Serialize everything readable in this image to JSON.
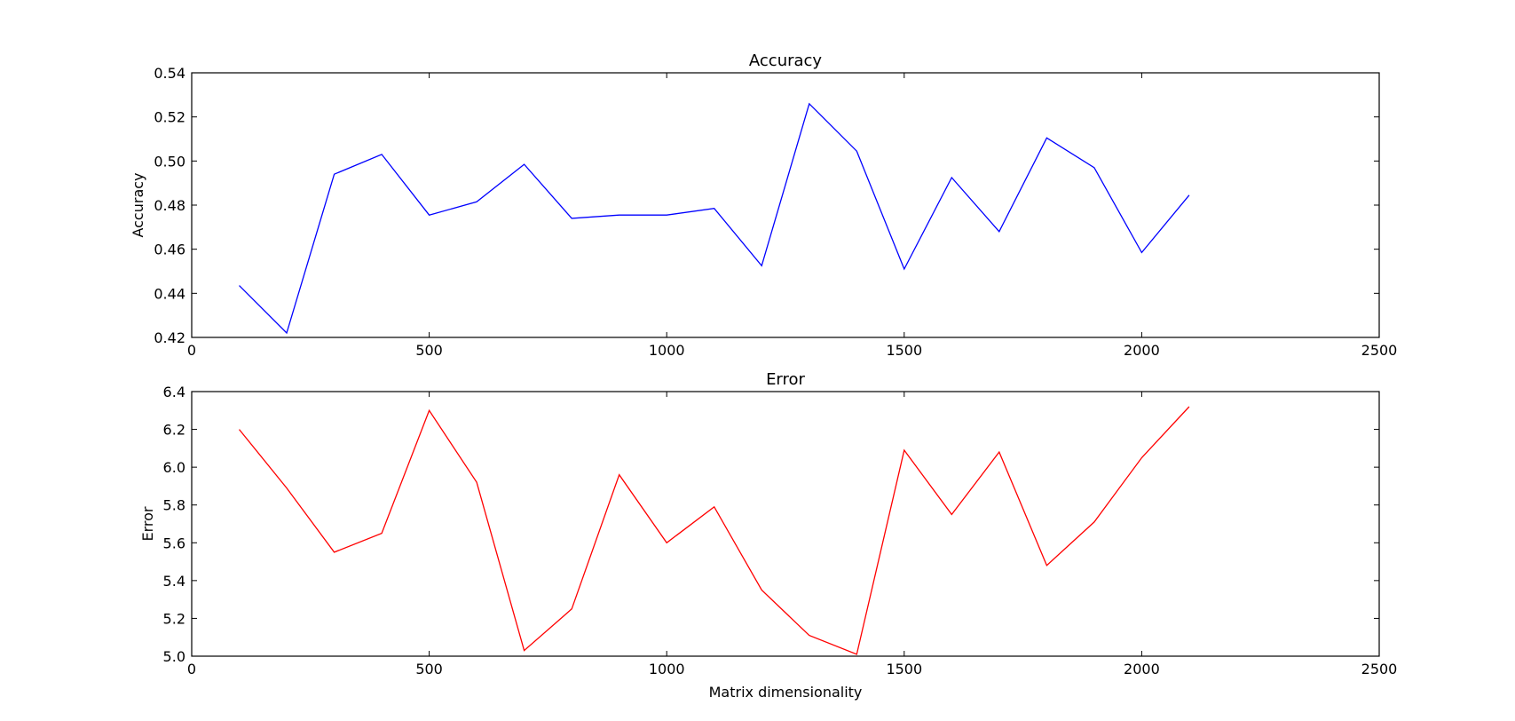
{
  "chart_data": [
    {
      "type": "line",
      "title": "Accuracy",
      "xlabel": "",
      "ylabel": "Accuracy",
      "xlim": [
        0,
        2500
      ],
      "ylim": [
        0.42,
        0.54
      ],
      "xticks": [
        0,
        500,
        1000,
        1500,
        2000,
        2500
      ],
      "xtick_labels": [
        "0",
        "500",
        "1000",
        "1500",
        "2000",
        "2500"
      ],
      "yticks": [
        0.42,
        0.44,
        0.46,
        0.48,
        0.5,
        0.52,
        0.54
      ],
      "ytick_labels": [
        "0.42",
        "0.44",
        "0.46",
        "0.48",
        "0.50",
        "0.52",
        "0.54"
      ],
      "grid": false,
      "series": [
        {
          "color": "#0000ff",
          "x": [
            100,
            200,
            300,
            400,
            500,
            600,
            700,
            800,
            900,
            1000,
            1100,
            1200,
            1300,
            1400,
            1500,
            1600,
            1700,
            1800,
            1900,
            2000,
            2100
          ],
          "y": [
            0.4435,
            0.422,
            0.494,
            0.503,
            0.4755,
            0.4815,
            0.4985,
            0.474,
            0.4755,
            0.4755,
            0.4785,
            0.4525,
            0.526,
            0.5045,
            0.451,
            0.4925,
            0.468,
            0.5105,
            0.497,
            0.4585,
            0.4845
          ]
        }
      ]
    },
    {
      "type": "line",
      "title": "Error",
      "xlabel": "Matrix dimensionality",
      "ylabel": "Error",
      "xlim": [
        0,
        2500
      ],
      "ylim": [
        5.0,
        6.4
      ],
      "xticks": [
        0,
        500,
        1000,
        1500,
        2000,
        2500
      ],
      "xtick_labels": [
        "0",
        "500",
        "1000",
        "1500",
        "2000",
        "2500"
      ],
      "yticks": [
        5.0,
        5.2,
        5.4,
        5.6,
        5.8,
        6.0,
        6.2,
        6.4
      ],
      "ytick_labels": [
        "5.0",
        "5.2",
        "5.4",
        "5.6",
        "5.8",
        "6.0",
        "6.2",
        "6.4"
      ],
      "grid": false,
      "series": [
        {
          "color": "#ff0000",
          "x": [
            100,
            200,
            300,
            400,
            500,
            600,
            700,
            800,
            900,
            1000,
            1100,
            1200,
            1300,
            1400,
            1500,
            1600,
            1700,
            1800,
            1900,
            2000,
            2100
          ],
          "y": [
            6.2,
            5.89,
            5.55,
            5.65,
            6.3,
            5.92,
            5.03,
            5.25,
            5.96,
            5.6,
            5.79,
            5.35,
            5.11,
            5.01,
            6.09,
            5.75,
            6.08,
            5.48,
            5.71,
            6.05,
            6.32
          ]
        }
      ]
    }
  ]
}
